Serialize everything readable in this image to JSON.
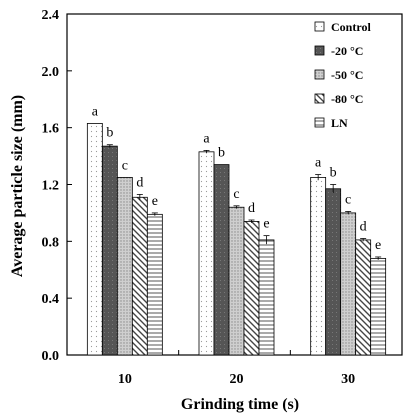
{
  "chart_data": {
    "type": "bar",
    "title": "",
    "xlabel": "Grinding time (s)",
    "ylabel": "Average particle size (mm)",
    "ylim": [
      0,
      2.4
    ],
    "yticks": [
      "0.0",
      "0.4",
      "0.8",
      "1.2",
      "1.6",
      "2.0",
      "2.4"
    ],
    "categories": [
      "10",
      "20",
      "30"
    ],
    "grid": false,
    "legend_position": "top-right",
    "series": [
      {
        "name": "Control",
        "values": [
          1.63,
          1.43,
          1.25
        ],
        "errors": [
          0.0,
          0.01,
          0.02
        ],
        "labels": [
          "a",
          "a",
          "a"
        ],
        "fill": "#ffffff",
        "pattern": "dots-light"
      },
      {
        "name": "-20 °C",
        "values": [
          1.47,
          1.34,
          1.17
        ],
        "errors": [
          0.01,
          0.0,
          0.03
        ],
        "labels": [
          "b",
          "b",
          "b"
        ],
        "fill": "#5a5a5a",
        "pattern": "solid-dark"
      },
      {
        "name": "-50 °C",
        "values": [
          1.25,
          1.04,
          1.0
        ],
        "errors": [
          0.0,
          0.01,
          0.01
        ],
        "labels": [
          "c",
          "c",
          "c"
        ],
        "fill": "#bdbdbd",
        "pattern": "grey-dots"
      },
      {
        "name": "-80 °C",
        "values": [
          1.11,
          0.94,
          0.81
        ],
        "errors": [
          0.02,
          0.01,
          0.01
        ],
        "labels": [
          "d",
          "d",
          "d"
        ],
        "fill": "#ffffff",
        "pattern": "diagonal"
      },
      {
        "name": "LN",
        "values": [
          0.99,
          0.81,
          0.68
        ],
        "errors": [
          0.01,
          0.03,
          0.01
        ],
        "labels": [
          "e",
          "e",
          "e"
        ],
        "fill": "#ffffff",
        "pattern": "horizontal"
      }
    ]
  }
}
